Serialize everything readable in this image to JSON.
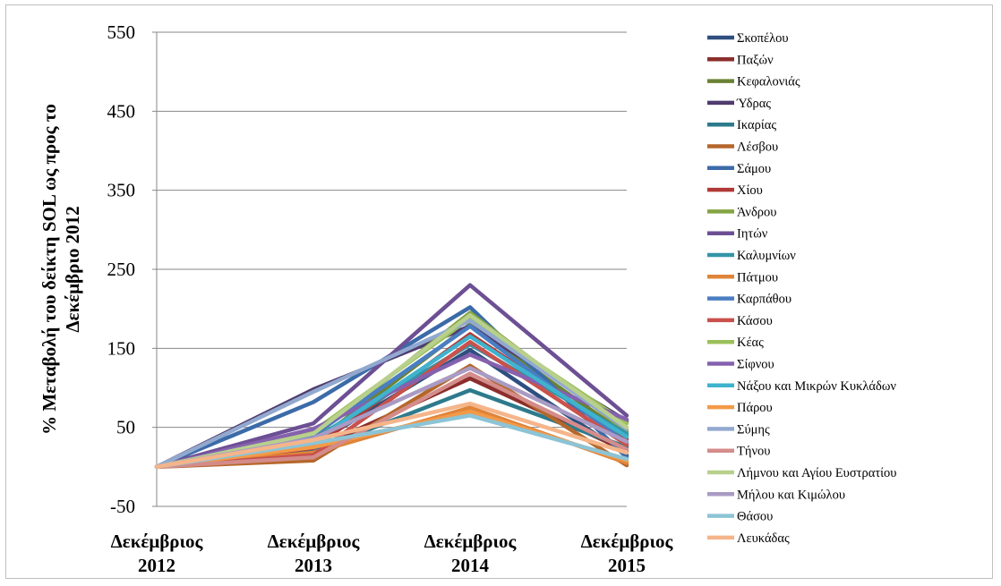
{
  "chart_data": {
    "type": "line",
    "ylabel_lines": [
      "% Μεταβολή του δείκτη SOL ως προς το",
      "Δεκέμβριο 2012"
    ],
    "ylim": [
      -50,
      550
    ],
    "yticks": [
      550,
      450,
      350,
      250,
      150,
      50,
      -50
    ],
    "grid": true,
    "legend_position": "right",
    "categories": [
      [
        "Δεκέμβριος",
        "2012"
      ],
      [
        "Δεκέμβριος",
        "2013"
      ],
      [
        "Δεκέμβριος",
        "2014"
      ],
      [
        "Δεκέμβριος",
        "2015"
      ]
    ],
    "series": [
      {
        "name": "Σκοπέλου",
        "color": "#2E4F7F",
        "values": [
          0,
          28,
          148,
          15
        ]
      },
      {
        "name": "Παξών",
        "color": "#8B2E2C",
        "values": [
          0,
          22,
          112,
          20
        ]
      },
      {
        "name": "Κεφαλονιάς",
        "color": "#6B8235",
        "values": [
          0,
          30,
          180,
          40
        ]
      },
      {
        "name": "Ύδρας",
        "color": "#4F3B6E",
        "values": [
          0,
          98,
          178,
          58
        ]
      },
      {
        "name": "Ικαρίας",
        "color": "#2D7A8C",
        "values": [
          0,
          20,
          97,
          25
        ]
      },
      {
        "name": "Λέσβου",
        "color": "#B5672B",
        "values": [
          0,
          8,
          128,
          2
        ]
      },
      {
        "name": "Σάμου",
        "color": "#3B6BA8",
        "values": [
          0,
          82,
          202,
          12
        ]
      },
      {
        "name": "Χίου",
        "color": "#B03A37",
        "values": [
          0,
          24,
          168,
          35
        ]
      },
      {
        "name": "Άνδρου",
        "color": "#85A544",
        "values": [
          0,
          38,
          195,
          45
        ]
      },
      {
        "name": "Ιητών",
        "color": "#6D4F94",
        "values": [
          0,
          55,
          230,
          65
        ]
      },
      {
        "name": "Καλυμνίων",
        "color": "#3495A8",
        "values": [
          0,
          35,
          155,
          42
        ]
      },
      {
        "name": "Πάτμου",
        "color": "#E0843A",
        "values": [
          0,
          18,
          75,
          5
        ]
      },
      {
        "name": "Καρπάθου",
        "color": "#4A7EC2",
        "values": [
          0,
          40,
          178,
          30
        ]
      },
      {
        "name": "Κάσου",
        "color": "#C9514C",
        "values": [
          0,
          15,
          158,
          28
        ]
      },
      {
        "name": "Κέας",
        "color": "#9BC05A",
        "values": [
          0,
          45,
          188,
          55
        ]
      },
      {
        "name": "Σίφνου",
        "color": "#8561AE",
        "values": [
          0,
          48,
          142,
          60
        ]
      },
      {
        "name": "Νάξου και Μικρών Κυκλάδων",
        "color": "#3FB3CE",
        "values": [
          0,
          32,
          165,
          38
        ]
      },
      {
        "name": "Πάρου",
        "color": "#F39A48",
        "values": [
          0,
          25,
          70,
          8
        ]
      },
      {
        "name": "Σύμης",
        "color": "#92A9CF",
        "values": [
          0,
          95,
          185,
          48
        ]
      },
      {
        "name": "Τήνου",
        "color": "#D48C8A",
        "values": [
          0,
          12,
          118,
          22
        ]
      },
      {
        "name": "Λήμνου και Αγίου Ευστρατίου",
        "color": "#B8D08C",
        "values": [
          0,
          42,
          192,
          50
        ]
      },
      {
        "name": "Μήλου και Κιμώλου",
        "color": "#A99BC4",
        "values": [
          0,
          36,
          125,
          32
        ]
      },
      {
        "name": "Θάσου",
        "color": "#8CC4D6",
        "values": [
          0,
          30,
          65,
          10
        ]
      },
      {
        "name": "Λευκάδας",
        "color": "#F5B58A",
        "values": [
          0,
          34,
          80,
          18
        ]
      }
    ]
  }
}
